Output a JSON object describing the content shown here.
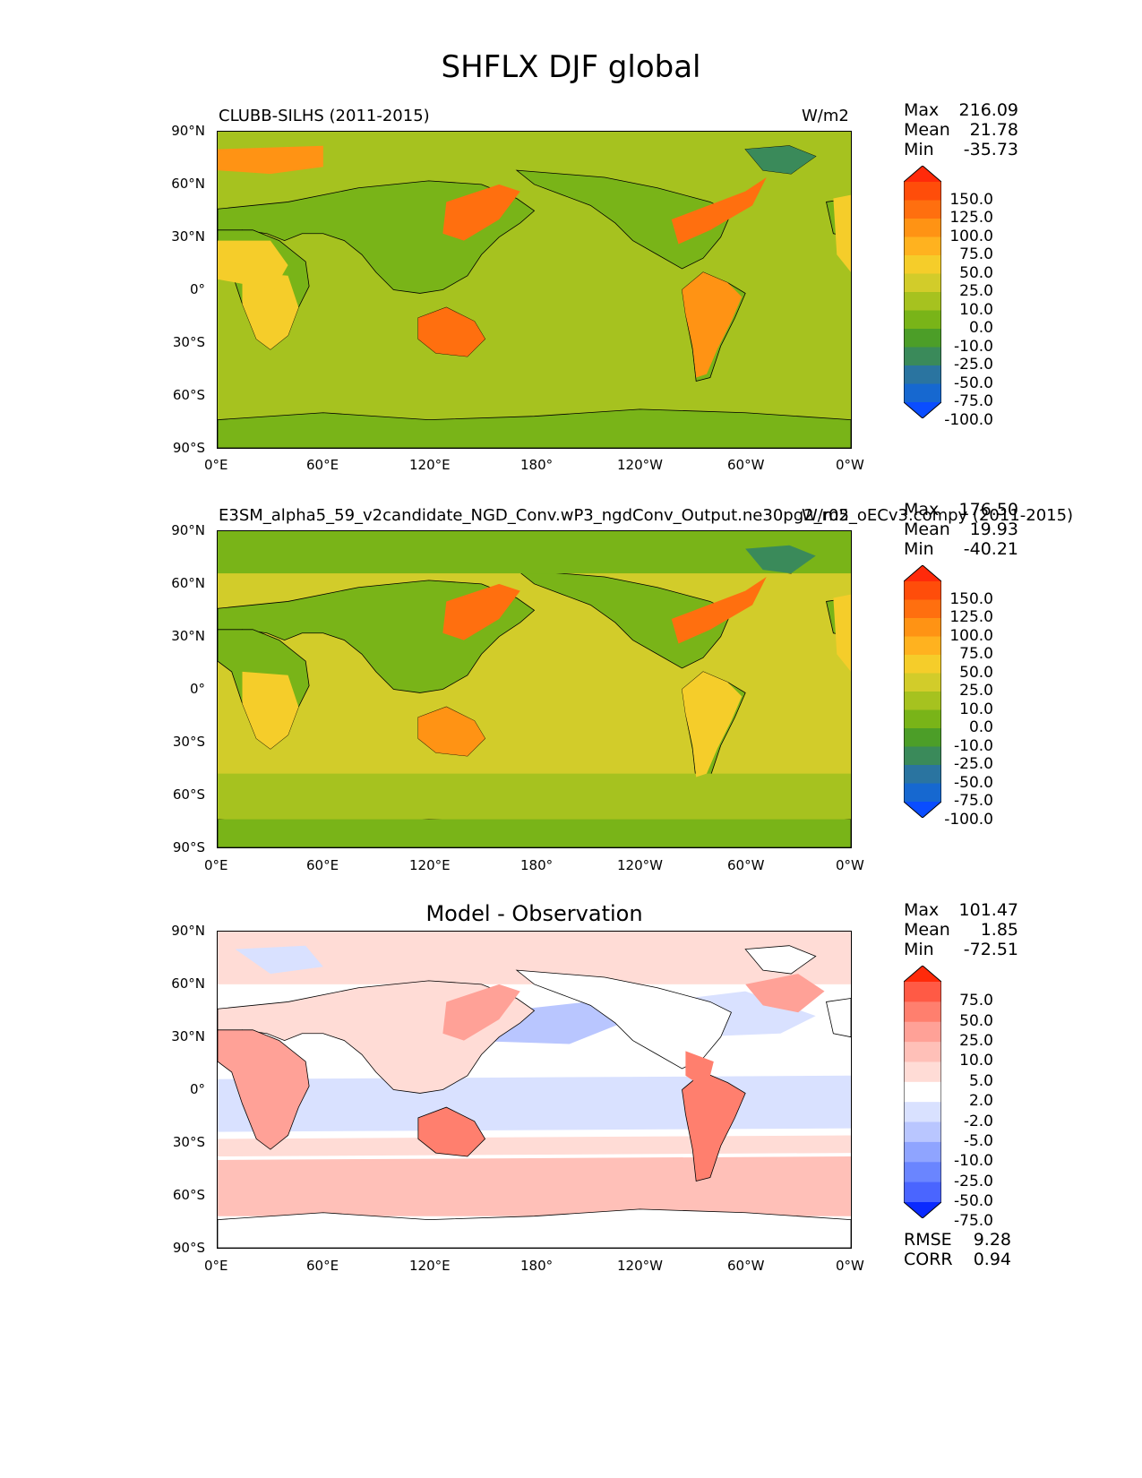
{
  "figure": {
    "title": "SHFLX DJF global"
  },
  "axes": {
    "lat_ticks": [
      "90°N",
      "60°N",
      "30°N",
      "0°",
      "30°S",
      "60°S",
      "90°S"
    ],
    "lon_ticks": [
      "0°E",
      "60°E",
      "120°E",
      "180°",
      "120°W",
      "60°W",
      "0°W"
    ]
  },
  "panels": [
    {
      "label": "CLUBB-SILHS (2011-2015)",
      "units": "W/m2",
      "stats": {
        "max_label": "Max",
        "max": "216.09",
        "mean_label": "Mean",
        "mean": "21.78",
        "min_label": "Min",
        "min": "-35.73"
      }
    },
    {
      "label": "E3SM_alpha5_59_v2candidate_NGD_Conv.wP3_ngdConv_Output.ne30pg2_r05_oECv3.compy (2011-2015)",
      "units": "W/m2",
      "stats": {
        "max_label": "Max",
        "max": "176.50",
        "mean_label": "Mean",
        "mean": "19.93",
        "min_label": "Min",
        "min": "-40.21"
      }
    },
    {
      "label": "Model - Observation",
      "stats": {
        "max_label": "Max",
        "max": "101.47",
        "mean_label": "Mean",
        "mean": "1.85",
        "min_label": "Min",
        "min": "-72.51"
      },
      "metrics": {
        "rmse_label": "RMSE",
        "rmse": "9.28",
        "corr_label": "CORR",
        "corr": "0.94"
      }
    }
  ],
  "colorbars": {
    "field": {
      "levels": [
        "150.0",
        "125.0",
        "100.0",
        "75.0",
        "50.0",
        "25.0",
        "10.0",
        "0.0",
        "-10.0",
        "-25.0",
        "-50.0",
        "-75.0",
        "-100.0"
      ],
      "colors": [
        "#ff2a0a",
        "#ff4d0a",
        "#ff6f0f",
        "#ff9314",
        "#ffb21f",
        "#f5cd2a",
        "#d2cc2a",
        "#a6c21f",
        "#79b418",
        "#4c9e28",
        "#3a8a5a",
        "#2a74a0",
        "#1668d0",
        "#0a4dff"
      ]
    },
    "diff": {
      "levels": [
        "75.0",
        "50.0",
        "25.0",
        "10.0",
        "5.0",
        "2.0",
        "-2.0",
        "-5.0",
        "-10.0",
        "-25.0",
        "-50.0",
        "-75.0"
      ],
      "colors": [
        "#ff2a0a",
        "#ff5a45",
        "#ff7f6e",
        "#ffa197",
        "#ffc0b8",
        "#ffdcd6",
        "#ffffff",
        "#d9e1ff",
        "#b9c6ff",
        "#8fa4ff",
        "#6a85ff",
        "#4a65ff",
        "#0a2aff"
      ]
    }
  },
  "colors": {
    "ocean_field": "#a6c21f",
    "land_field": "#79b418",
    "ocean_diff": "#ffdcd6",
    "coastline": "#000000"
  }
}
